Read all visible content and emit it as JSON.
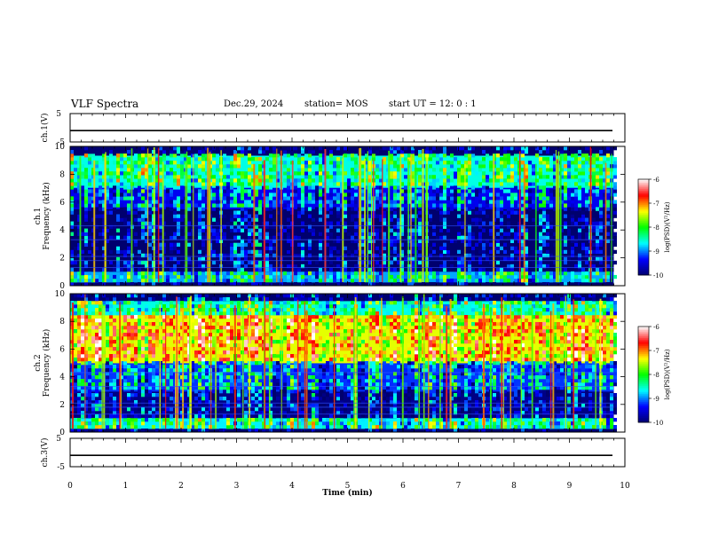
{
  "header": {
    "title": "VLF Spectra",
    "date": "Dec.29, 2024",
    "station": "station= MOS",
    "start_ut": "start  UT =   12: 0  : 1"
  },
  "chart_data": [
    {
      "type": "line",
      "name": "ch1-waveform",
      "ylabel": "ch.1(V)",
      "ylim": [
        -5,
        5
      ],
      "yticks": [
        "5",
        "-5"
      ],
      "x": [
        0,
        10
      ],
      "y": [
        -1,
        -1
      ],
      "xlim": [
        0,
        10
      ]
    },
    {
      "type": "heatmap",
      "name": "ch1-spectrogram",
      "ylabel": "ch.1\nFrequency (kHz)",
      "ylim": [
        0,
        10
      ],
      "yticks": [
        "0",
        "2",
        "4",
        "6",
        "8",
        "10"
      ],
      "xlim": [
        0,
        10
      ],
      "data_extent_min": 9.8,
      "colorbar": {
        "label": "log(PSD)(V²/Hz)",
        "ticks": [
          "-6",
          "-7",
          "-8",
          "-9",
          "-10"
        ],
        "range": [
          -10,
          -6
        ]
      },
      "bands": [
        {
          "f_low": 0.0,
          "f_high": 0.3,
          "level": -10
        },
        {
          "f_low": 0.3,
          "f_high": 1.0,
          "level": -8.5
        },
        {
          "f_low": 1.0,
          "f_high": 5.5,
          "level": -9.6
        },
        {
          "f_low": 5.5,
          "f_high": 7.0,
          "level": -9.0
        },
        {
          "f_low": 7.0,
          "f_high": 9.3,
          "level": -8.2
        },
        {
          "f_low": 9.3,
          "f_high": 10.0,
          "level": -9.8
        }
      ]
    },
    {
      "type": "heatmap",
      "name": "ch2-spectrogram",
      "ylabel": "ch.2\nFrequency (kHz)",
      "ylim": [
        0,
        10
      ],
      "yticks": [
        "0",
        "2",
        "4",
        "6",
        "8",
        "10"
      ],
      "xlim": [
        0,
        10
      ],
      "data_extent_min": 9.8,
      "colorbar": {
        "label": "log(PSD)(V²/Hz)",
        "ticks": [
          "-6",
          "-7",
          "-8",
          "-9",
          "-10"
        ],
        "range": [
          -10,
          -6
        ]
      },
      "bands": [
        {
          "f_low": 0.0,
          "f_high": 0.3,
          "level": -10
        },
        {
          "f_low": 0.3,
          "f_high": 1.0,
          "level": -8.3
        },
        {
          "f_low": 1.0,
          "f_high": 3.0,
          "level": -9.5
        },
        {
          "f_low": 3.0,
          "f_high": 5.0,
          "level": -8.8
        },
        {
          "f_low": 5.0,
          "f_high": 8.5,
          "level": -7.0
        },
        {
          "f_low": 8.5,
          "f_high": 9.5,
          "level": -8.2
        },
        {
          "f_low": 9.5,
          "f_high": 10.0,
          "level": -9.6
        }
      ]
    },
    {
      "type": "line",
      "name": "ch3-waveform",
      "ylabel": "ch.3(V)",
      "ylim": [
        -5,
        5
      ],
      "yticks": [
        "5",
        "-5"
      ],
      "x": [
        0,
        10
      ],
      "y": [
        -1,
        -1
      ],
      "xlim": [
        0,
        10
      ]
    }
  ],
  "xaxis": {
    "label": "Time (min)",
    "ticks": [
      "0",
      "1",
      "2",
      "3",
      "4",
      "5",
      "6",
      "7",
      "8",
      "9",
      "10"
    ]
  },
  "colors": {
    "colormap": [
      "#00006e",
      "#0000ff",
      "#00ffff",
      "#00ff00",
      "#ffff00",
      "#ff0000",
      "#ffffff"
    ]
  }
}
